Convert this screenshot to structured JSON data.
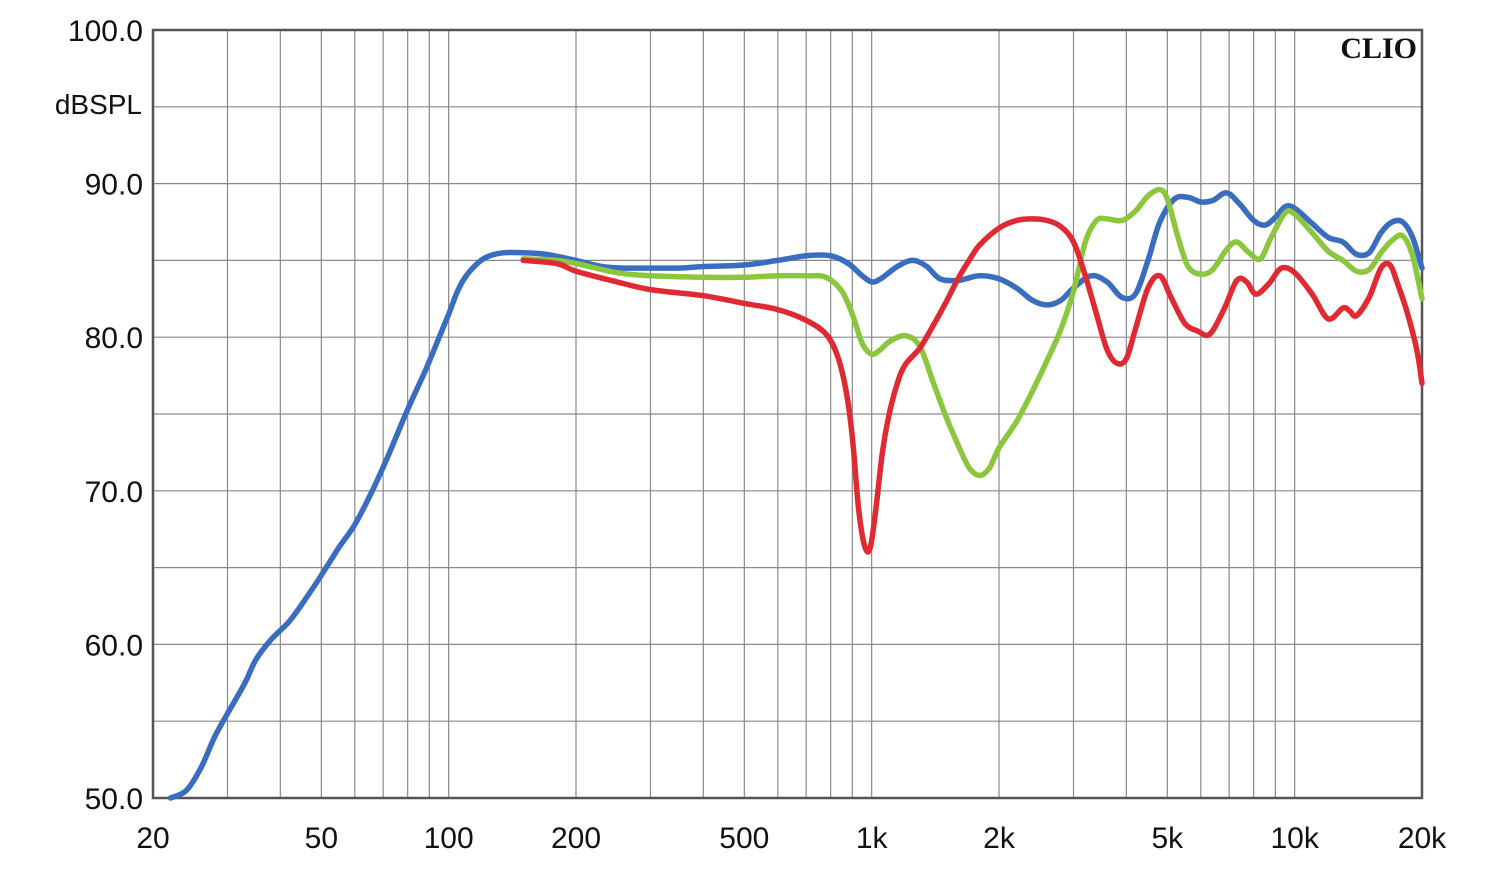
{
  "chart_data": {
    "type": "line",
    "title": "",
    "brand_label": "CLIO",
    "ylabel": "dBSPL",
    "xlabel": "",
    "x_scale": "log",
    "xlim": [
      20,
      20000
    ],
    "ylim": [
      50,
      100
    ],
    "grid": true,
    "x_ticks": [
      {
        "value": 20,
        "label": "20"
      },
      {
        "value": 50,
        "label": "50"
      },
      {
        "value": 100,
        "label": "100"
      },
      {
        "value": 200,
        "label": "200"
      },
      {
        "value": 500,
        "label": "500"
      },
      {
        "value": 1000,
        "label": "1k"
      },
      {
        "value": 2000,
        "label": "2k"
      },
      {
        "value": 5000,
        "label": "5k"
      },
      {
        "value": 10000,
        "label": "10k"
      },
      {
        "value": 20000,
        "label": "20k"
      }
    ],
    "y_ticks": [
      {
        "value": 50,
        "label": "50.0"
      },
      {
        "value": 60,
        "label": "60.0"
      },
      {
        "value": 70,
        "label": "70.0"
      },
      {
        "value": 80,
        "label": "80.0"
      },
      {
        "value": 90,
        "label": "90.0"
      },
      {
        "value": 100,
        "label": "100.0"
      }
    ],
    "colors": {
      "frame": "#555555",
      "grid": "#8a8a8a"
    },
    "series": [
      {
        "color": "#3a6dbf",
        "points": [
          [
            22,
            50.0
          ],
          [
            24,
            50.5
          ],
          [
            26,
            52.0
          ],
          [
            28,
            54.0
          ],
          [
            30,
            55.5
          ],
          [
            33,
            57.5
          ],
          [
            35,
            59.0
          ],
          [
            38,
            60.3
          ],
          [
            42,
            61.5
          ],
          [
            46,
            63.0
          ],
          [
            50,
            64.5
          ],
          [
            55,
            66.3
          ],
          [
            60,
            67.8
          ],
          [
            66,
            70.0
          ],
          [
            72,
            72.3
          ],
          [
            80,
            75.3
          ],
          [
            88,
            77.8
          ],
          [
            95,
            80.0
          ],
          [
            100,
            81.5
          ],
          [
            105,
            83.0
          ],
          [
            110,
            84.0
          ],
          [
            118,
            84.9
          ],
          [
            125,
            85.3
          ],
          [
            135,
            85.5
          ],
          [
            150,
            85.5
          ],
          [
            170,
            85.4
          ],
          [
            200,
            85.0
          ],
          [
            230,
            84.6
          ],
          [
            260,
            84.5
          ],
          [
            300,
            84.5
          ],
          [
            350,
            84.5
          ],
          [
            400,
            84.6
          ],
          [
            500,
            84.7
          ],
          [
            600,
            85.0
          ],
          [
            700,
            85.3
          ],
          [
            800,
            85.3
          ],
          [
            880,
            84.8
          ],
          [
            950,
            84.0
          ],
          [
            1000,
            83.6
          ],
          [
            1050,
            83.8
          ],
          [
            1150,
            84.6
          ],
          [
            1250,
            85.0
          ],
          [
            1350,
            84.6
          ],
          [
            1450,
            83.8
          ],
          [
            1600,
            83.7
          ],
          [
            1800,
            84.0
          ],
          [
            2000,
            83.8
          ],
          [
            2200,
            83.2
          ],
          [
            2400,
            82.4
          ],
          [
            2600,
            82.1
          ],
          [
            2800,
            82.4
          ],
          [
            3000,
            83.2
          ],
          [
            3300,
            84.0
          ],
          [
            3600,
            83.6
          ],
          [
            3900,
            82.6
          ],
          [
            4200,
            82.8
          ],
          [
            4500,
            85.0
          ],
          [
            4800,
            87.5
          ],
          [
            5200,
            89.0
          ],
          [
            5600,
            89.1
          ],
          [
            6000,
            88.8
          ],
          [
            6400,
            88.9
          ],
          [
            6900,
            89.4
          ],
          [
            7400,
            88.7
          ],
          [
            8000,
            87.6
          ],
          [
            8500,
            87.3
          ],
          [
            9000,
            87.8
          ],
          [
            9500,
            88.5
          ],
          [
            10000,
            88.4
          ],
          [
            11000,
            87.4
          ],
          [
            12000,
            86.5
          ],
          [
            13000,
            86.2
          ],
          [
            14000,
            85.4
          ],
          [
            15000,
            85.5
          ],
          [
            16000,
            86.8
          ],
          [
            17000,
            87.5
          ],
          [
            18000,
            87.5
          ],
          [
            19000,
            86.5
          ],
          [
            20000,
            84.5
          ]
        ]
      },
      {
        "color": "#8cc63f",
        "points": [
          [
            150,
            85.1
          ],
          [
            180,
            85.0
          ],
          [
            200,
            84.8
          ],
          [
            250,
            84.2
          ],
          [
            300,
            84.0
          ],
          [
            400,
            83.9
          ],
          [
            500,
            83.9
          ],
          [
            600,
            84.0
          ],
          [
            700,
            84.0
          ],
          [
            780,
            83.9
          ],
          [
            850,
            83.0
          ],
          [
            900,
            81.5
          ],
          [
            950,
            79.6
          ],
          [
            1000,
            78.9
          ],
          [
            1050,
            79.2
          ],
          [
            1100,
            79.7
          ],
          [
            1200,
            80.1
          ],
          [
            1300,
            79.4
          ],
          [
            1400,
            77.0
          ],
          [
            1500,
            74.8
          ],
          [
            1600,
            73.0
          ],
          [
            1700,
            71.5
          ],
          [
            1800,
            71.0
          ],
          [
            1900,
            71.5
          ],
          [
            2000,
            72.8
          ],
          [
            2200,
            74.5
          ],
          [
            2400,
            76.5
          ],
          [
            2600,
            78.5
          ],
          [
            2800,
            80.5
          ],
          [
            3000,
            83.0
          ],
          [
            3200,
            86.2
          ],
          [
            3400,
            87.6
          ],
          [
            3600,
            87.7
          ],
          [
            3900,
            87.6
          ],
          [
            4200,
            88.2
          ],
          [
            4500,
            89.2
          ],
          [
            4800,
            89.6
          ],
          [
            5000,
            89.0
          ],
          [
            5300,
            86.5
          ],
          [
            5600,
            84.6
          ],
          [
            6000,
            84.1
          ],
          [
            6400,
            84.4
          ],
          [
            6900,
            85.7
          ],
          [
            7300,
            86.2
          ],
          [
            7800,
            85.5
          ],
          [
            8300,
            85.1
          ],
          [
            8800,
            86.5
          ],
          [
            9500,
            88.1
          ],
          [
            10000,
            88.0
          ],
          [
            11000,
            86.8
          ],
          [
            12000,
            85.6
          ],
          [
            13000,
            85.0
          ],
          [
            14000,
            84.3
          ],
          [
            15000,
            84.4
          ],
          [
            16000,
            85.5
          ],
          [
            17000,
            86.3
          ],
          [
            18000,
            86.6
          ],
          [
            19000,
            85.3
          ],
          [
            20000,
            82.5
          ]
        ]
      },
      {
        "color": "#e02a33",
        "points": [
          [
            150,
            85.0
          ],
          [
            180,
            84.8
          ],
          [
            200,
            84.3
          ],
          [
            250,
            83.6
          ],
          [
            300,
            83.1
          ],
          [
            400,
            82.7
          ],
          [
            500,
            82.2
          ],
          [
            600,
            81.8
          ],
          [
            700,
            81.1
          ],
          [
            780,
            80.2
          ],
          [
            830,
            78.8
          ],
          [
            870,
            76.5
          ],
          [
            900,
            73.5
          ],
          [
            930,
            69.0
          ],
          [
            960,
            66.5
          ],
          [
            990,
            66.2
          ],
          [
            1020,
            68.5
          ],
          [
            1060,
            72.5
          ],
          [
            1100,
            75.0
          ],
          [
            1150,
            77.0
          ],
          [
            1200,
            78.2
          ],
          [
            1300,
            79.3
          ],
          [
            1400,
            80.8
          ],
          [
            1500,
            82.3
          ],
          [
            1600,
            83.8
          ],
          [
            1700,
            85.0
          ],
          [
            1800,
            86.0
          ],
          [
            2000,
            87.1
          ],
          [
            2200,
            87.6
          ],
          [
            2400,
            87.7
          ],
          [
            2600,
            87.6
          ],
          [
            2800,
            87.2
          ],
          [
            3000,
            86.2
          ],
          [
            3200,
            84.0
          ],
          [
            3400,
            81.5
          ],
          [
            3600,
            79.2
          ],
          [
            3800,
            78.3
          ],
          [
            4000,
            78.6
          ],
          [
            4200,
            80.5
          ],
          [
            4500,
            83.2
          ],
          [
            4800,
            84.0
          ],
          [
            5100,
            82.6
          ],
          [
            5500,
            80.9
          ],
          [
            5900,
            80.4
          ],
          [
            6300,
            80.2
          ],
          [
            6800,
            81.8
          ],
          [
            7300,
            83.7
          ],
          [
            7700,
            83.6
          ],
          [
            8100,
            82.8
          ],
          [
            8700,
            83.5
          ],
          [
            9300,
            84.5
          ],
          [
            10000,
            84.2
          ],
          [
            11000,
            82.8
          ],
          [
            12000,
            81.2
          ],
          [
            13000,
            81.9
          ],
          [
            13500,
            81.7
          ],
          [
            14000,
            81.4
          ],
          [
            15000,
            82.6
          ],
          [
            16000,
            84.5
          ],
          [
            16800,
            84.7
          ],
          [
            17500,
            83.5
          ],
          [
            18500,
            81.5
          ],
          [
            19500,
            79.0
          ],
          [
            20000,
            77.0
          ]
        ]
      }
    ]
  }
}
